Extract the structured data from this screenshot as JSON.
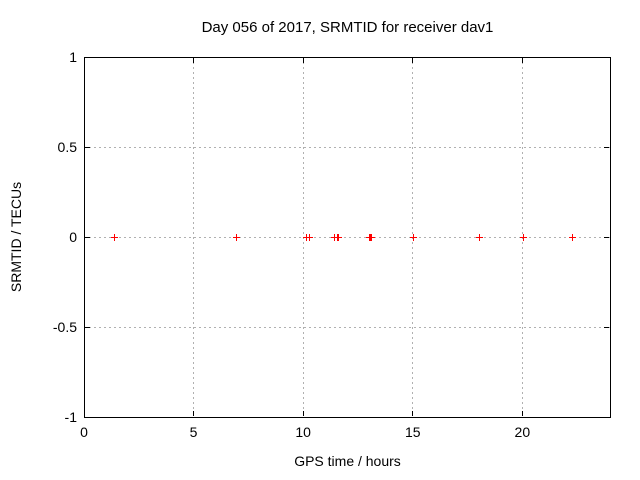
{
  "colors": {
    "marker": "#ff0000",
    "grid": "#b0b0b0",
    "axis": "#000000",
    "text": "#000000",
    "background": "#ffffff"
  },
  "chart_data": {
    "type": "scatter",
    "title": "Day 056 of 2017, SRMTID for receiver dav1",
    "xlabel": "GPS time / hours",
    "ylabel": "SRMTID / TECUs",
    "xlim": [
      0,
      24
    ],
    "ylim": [
      -1,
      1
    ],
    "grid": true,
    "legend": "none",
    "xticks": {
      "values": [
        0,
        5,
        10,
        15,
        20
      ],
      "labels": [
        "0",
        "5",
        "10",
        "15",
        "20"
      ]
    },
    "yticks": {
      "values": [
        1,
        0.5,
        0,
        -0.5,
        -1
      ],
      "labels": [
        "1",
        "0.5",
        "0",
        "-0.5",
        "-1"
      ]
    },
    "series": [
      {
        "name": "SRMTID",
        "marker": "plus",
        "color": "#ff0000",
        "points_x_hours": [
          1.38,
          6.98,
          10.13,
          10.3,
          11.42,
          11.58,
          11.63,
          13.03,
          13.08,
          13.13,
          15.05,
          18.05,
          20.06,
          22.28
        ],
        "points_y_tecus": [
          0,
          0,
          0,
          0,
          0,
          0,
          0,
          0,
          0,
          0,
          0,
          0,
          0,
          0
        ]
      }
    ]
  }
}
